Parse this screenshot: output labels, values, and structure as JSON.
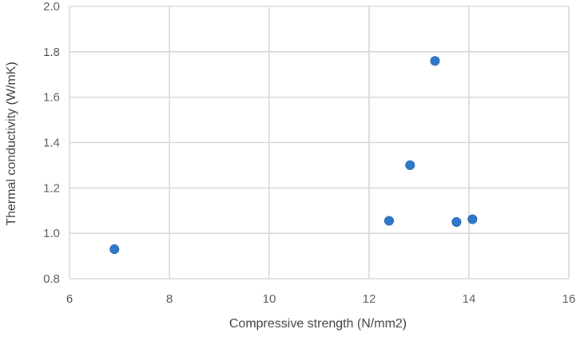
{
  "chart_data": {
    "type": "scatter",
    "title": "",
    "xlabel": "Compressive strength (N/mm2)",
    "ylabel": "Thermal conductivity (W/mK)",
    "xlim": [
      6,
      16
    ],
    "ylim": [
      0.8,
      2.0
    ],
    "x_ticks": [
      "6",
      "8",
      "10",
      "12",
      "14",
      "16"
    ],
    "y_ticks": [
      "0.8",
      "1.0",
      "1.2",
      "1.4",
      "1.6",
      "1.8",
      "2.0"
    ],
    "grid": true,
    "legend": "none",
    "color": "#2f79c9",
    "series": [
      {
        "points": [
          {
            "x": 6.9,
            "y": 0.93
          },
          {
            "x": 12.4,
            "y": 1.055
          },
          {
            "x": 12.82,
            "y": 1.3
          },
          {
            "x": 13.32,
            "y": 1.76
          },
          {
            "x": 13.75,
            "y": 1.05
          },
          {
            "x": 14.07,
            "y": 1.062
          }
        ]
      }
    ]
  }
}
